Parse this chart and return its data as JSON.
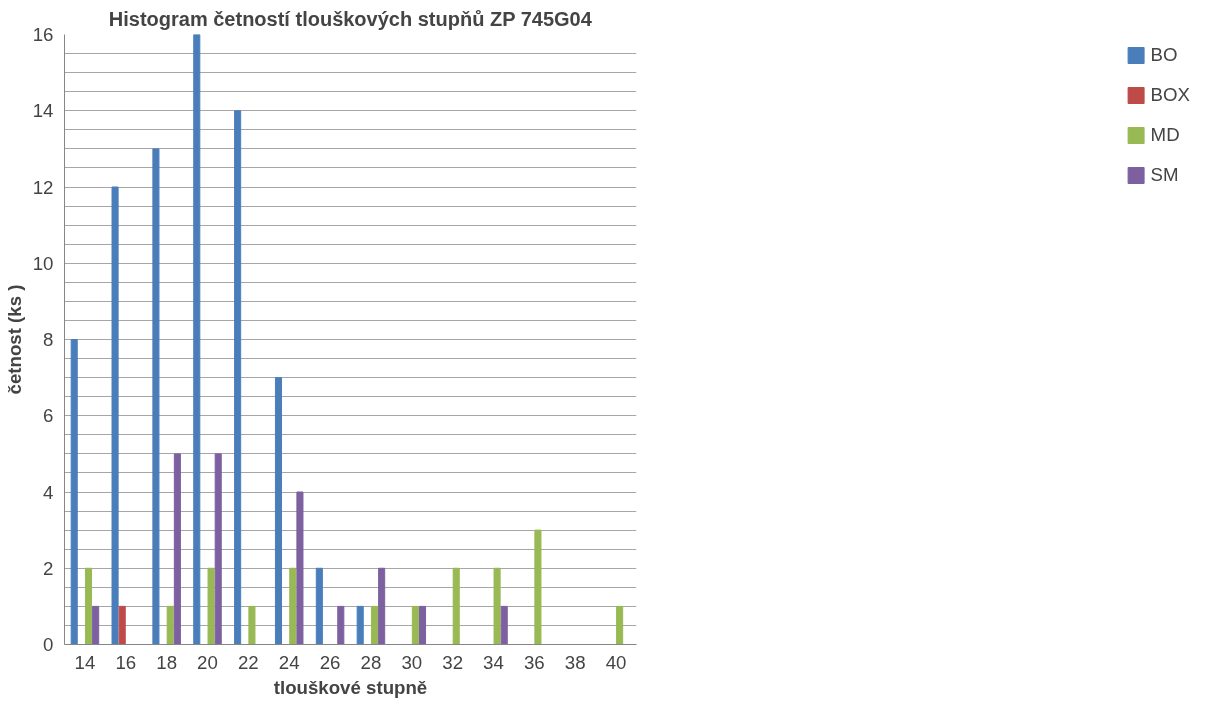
{
  "chart_data": {
    "type": "bar",
    "title": "Histogram četností tlouškových stupňů ZP 745G04",
    "xlabel": "tlouškové stupně",
    "ylabel": "četnost (ks )",
    "categories": [
      "14",
      "16",
      "18",
      "20",
      "22",
      "24",
      "26",
      "28",
      "30",
      "32",
      "34",
      "36",
      "38",
      "40"
    ],
    "series": [
      {
        "name": "BO",
        "color": "#4a7ebb",
        "values": [
          8,
          12,
          13,
          16,
          14,
          7,
          2,
          1,
          0,
          0,
          0,
          0,
          0,
          0
        ]
      },
      {
        "name": "BOX",
        "color": "#be4b48",
        "values": [
          0,
          1,
          0,
          0,
          0,
          0,
          0,
          0,
          0,
          0,
          0,
          0,
          0,
          0
        ]
      },
      {
        "name": "MD",
        "color": "#98b954",
        "values": [
          2,
          0,
          1,
          2,
          1,
          2,
          0,
          1,
          1,
          2,
          2,
          3,
          0,
          1
        ]
      },
      {
        "name": "SM",
        "color": "#7d60a0",
        "values": [
          1,
          0,
          5,
          5,
          0,
          4,
          1,
          2,
          1,
          0,
          1,
          0,
          0,
          0
        ]
      }
    ],
    "ylim": [
      0,
      16
    ],
    "yticks": [
      0,
      {
        "value": 0.5,
        "label": null
      },
      {
        "value": 1,
        "label": null
      },
      {
        "value": 1.5,
        "label": null
      },
      2,
      {
        "value": 2.5,
        "label": null
      },
      {
        "value": 3,
        "label": null
      },
      {
        "value": 3.5,
        "label": null
      },
      4,
      {
        "value": 4.5,
        "label": null
      },
      {
        "value": 5,
        "label": null
      },
      {
        "value": 5.5,
        "label": null
      },
      6,
      {
        "value": 6.5,
        "label": null
      },
      {
        "value": 7,
        "label": null
      },
      {
        "value": 7.5,
        "label": null
      },
      8,
      {
        "value": 8.5,
        "label": null
      },
      {
        "value": 9,
        "label": null
      },
      {
        "value": 9.5,
        "label": null
      },
      10,
      {
        "value": 10.5,
        "label": null
      },
      {
        "value": 11,
        "label": null
      },
      {
        "value": 11.5,
        "label": null
      },
      12,
      {
        "value": 12.5,
        "label": null
      },
      {
        "value": 13,
        "label": null
      },
      {
        "value": 13.5,
        "label": null
      },
      14,
      {
        "value": 14.5,
        "label": null
      },
      {
        "value": 15,
        "label": null
      },
      {
        "value": 15.5,
        "label": null
      },
      16
    ],
    "grid": "y",
    "legend": "right"
  }
}
